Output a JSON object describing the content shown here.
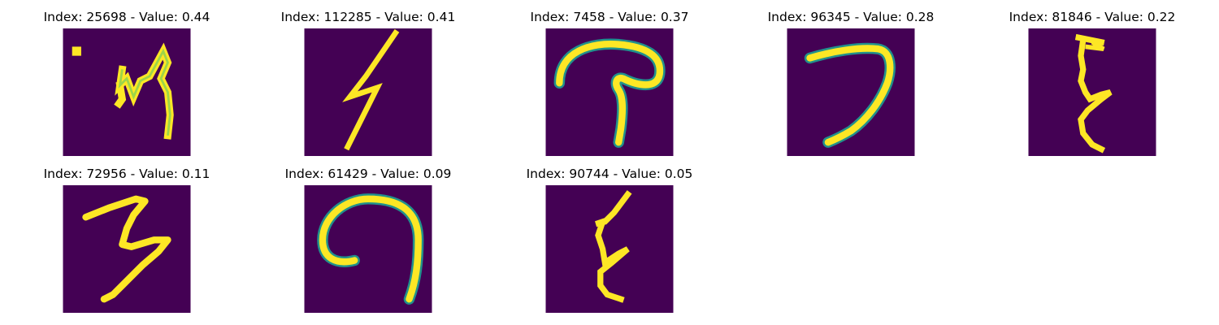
{
  "colors": {
    "background": "#440154",
    "mid": "#21918c",
    "light": "#5ec962",
    "stroke": "#fde725"
  },
  "chart_data": {
    "type": "heatmap",
    "colormap": "viridis",
    "axes": "off",
    "panels": [
      {
        "title": "Index: 25698 - Value: 0.44",
        "index": 25698,
        "value": 0.44,
        "glyph": "m-shape"
      },
      {
        "title": "Index: 112285 - Value: 0.41",
        "index": 112285,
        "value": 0.41,
        "glyph": "lightning-shape"
      },
      {
        "title": "Index: 7458 - Value: 0.37",
        "index": 7458,
        "value": 0.37,
        "glyph": "hook-shape"
      },
      {
        "title": "Index: 96345 - Value: 0.28",
        "index": 96345,
        "value": 0.28,
        "glyph": "seven-shape"
      },
      {
        "title": "Index: 81846 - Value: 0.22",
        "index": 81846,
        "value": 0.22,
        "glyph": "xi-shape"
      },
      {
        "title": "Index: 72956 - Value: 0.11",
        "index": 72956,
        "value": 0.11,
        "glyph": "three-shape"
      },
      {
        "title": "Index: 61429 - Value: 0.09",
        "index": 61429,
        "value": 0.09,
        "glyph": "curl-shape"
      },
      {
        "title": "Index: 90744 - Value: 0.05",
        "index": 90744,
        "value": 0.05,
        "glyph": "xi-shape-2"
      }
    ]
  }
}
